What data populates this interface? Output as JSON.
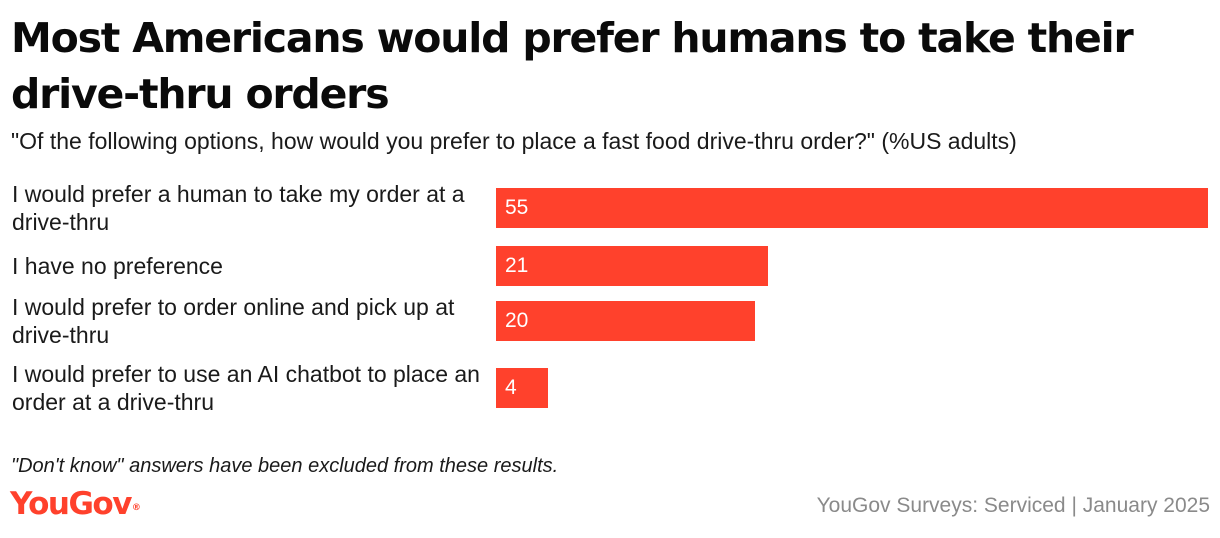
{
  "header": {
    "title": "Most Americans would prefer humans to take their drive-thru orders",
    "subtitle": "\"Of the following options, how would you prefer to place a fast food drive-thru order?\" (%US adults)"
  },
  "footer": {
    "note": "\"Don't know\" answers have been excluded from these results.",
    "logo_text": "YouGov",
    "logo_mark": "®",
    "source": "YouGov Surveys: Serviced | January 2025"
  },
  "colors": {
    "bar": "#ff412c",
    "logo": "#ff412c"
  },
  "chart_data": {
    "type": "bar",
    "orientation": "horizontal",
    "title": "Most Americans would prefer humans to take their drive-thru orders",
    "subtitle": "\"Of the following options, how would you prefer to place a fast food drive-thru order?\" (%US adults)",
    "categories": [
      "I would prefer a human to take my order at a drive-thru",
      "I have no preference",
      "I would prefer to order online and pick up at drive-thru",
      "I would prefer to use an AI chatbot to place an order at a drive-thru"
    ],
    "values": [
      55,
      21,
      20,
      4
    ],
    "xlim": [
      0,
      55
    ],
    "xlabel": "",
    "ylabel": "",
    "grid": false,
    "legend": "none"
  }
}
